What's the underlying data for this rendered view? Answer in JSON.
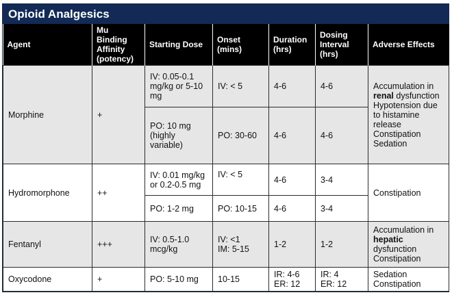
{
  "title": "Opioid Analgesics",
  "headers": {
    "agent": "Agent",
    "affinity": "Mu Binding Affinity (potency)",
    "dose": "Starting Dose",
    "onset": "Onset (mins)",
    "duration": "Duration (hrs)",
    "interval": "Dosing Interval (hrs)",
    "adverse": "Adverse Effects"
  },
  "morphine": {
    "agent": "Morphine",
    "affinity": "+",
    "iv": {
      "dose": "IV: 0.05-0.1 mg/kg or 5-10 mg",
      "onset": "IV: < 5",
      "duration": "4-6",
      "interval": "4-6"
    },
    "po": {
      "dose": "PO: 10 mg (highly variable)",
      "onset": "PO: 30-60",
      "duration": "4-6",
      "interval": "4-6"
    },
    "adverse": {
      "pre": "Accumulation in",
      "bold": "renal",
      "post": "dysfunction",
      "line2": "Hypotension due to histamine release",
      "line3": "Constipation",
      "line4": "Sedation"
    }
  },
  "hydromorphone": {
    "agent": "Hydromorphone",
    "affinity": "++",
    "iv": {
      "dose_a": "IV: 0.01 mg/kg",
      "dose_b": "or 0.2-0.5 mg",
      "onset": "IV: < 5",
      "duration": "4-6",
      "interval": "3-4"
    },
    "po": {
      "dose": "PO: 1-2 mg",
      "onset": "PO: 10-15",
      "duration": "4-6",
      "interval": "3-4"
    },
    "adverse": "Constipation"
  },
  "fentanyl": {
    "agent": "Fentanyl",
    "affinity": "+++",
    "dose": "IV: 0.5-1.0 mcg/kg",
    "onset_a": "IV: <1",
    "onset_b": "IM: 5-15",
    "duration": "1-2",
    "interval": "1-2",
    "adverse": {
      "pre": "Accumulation in",
      "bold": "hepatic",
      "post": "dysfunction",
      "line2": "Constipation"
    }
  },
  "oxycodone": {
    "agent": "Oxycodone",
    "affinity": "+",
    "dose": "PO: 5-10 mg",
    "onset": "10-15",
    "duration_a": "IR: 4-6",
    "duration_b": "ER: 12",
    "interval_a": "IR: 4",
    "interval_b": "ER: 12",
    "adverse_a": "Sedation",
    "adverse_b": "Constipation"
  }
}
